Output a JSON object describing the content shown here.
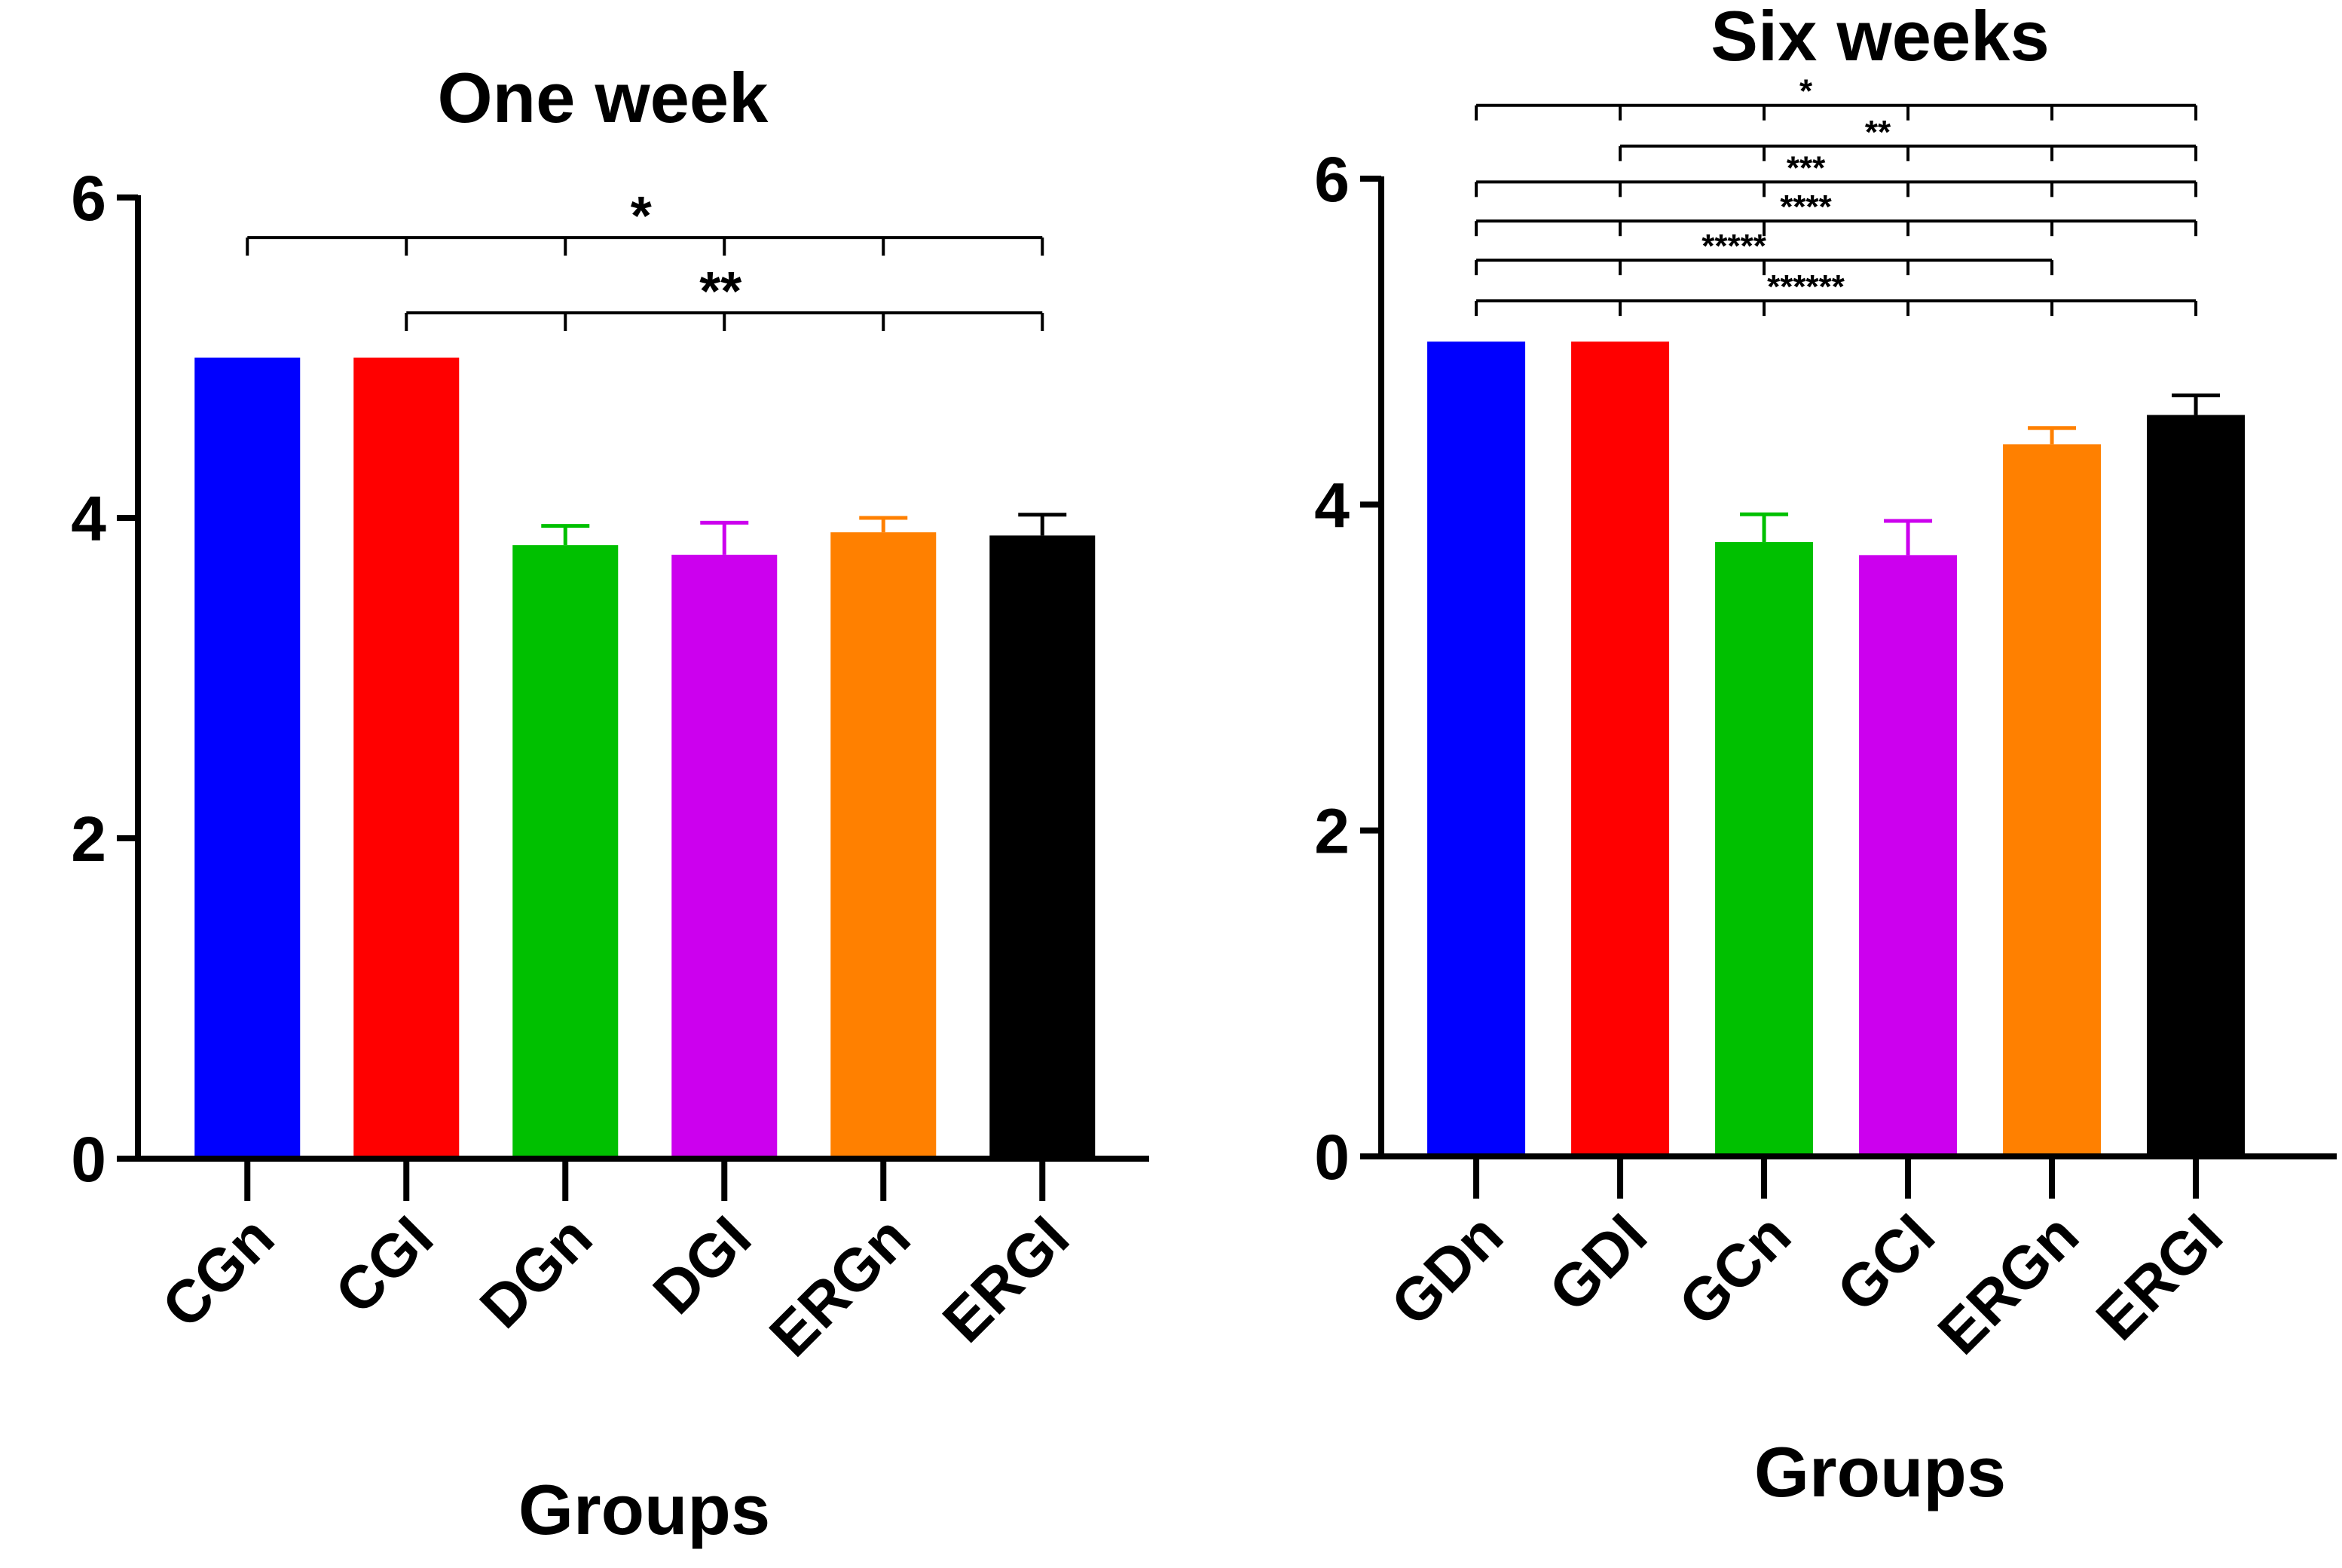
{
  "chart_data": [
    {
      "type": "bar",
      "title": "One week",
      "xlabel": "Groups",
      "ylabel": "",
      "ylim": [
        0,
        6
      ],
      "yticks": [
        0,
        2,
        4,
        6
      ],
      "categories": [
        "CGn",
        "CGI",
        "DGn",
        "DGI",
        "ERGn",
        "ERGI"
      ],
      "values": [
        5.0,
        5.0,
        3.83,
        3.77,
        3.91,
        3.89
      ],
      "errors": [
        0,
        0,
        0.12,
        0.2,
        0.09,
        0.13
      ],
      "colors": [
        "#0000ff",
        "#ff0000",
        "#00c000",
        "#cc00ee",
        "#ff8000",
        "#000000"
      ],
      "grid": false,
      "legend": "none",
      "significance": [
        {
          "label": "*",
          "from": 0,
          "to": 5,
          "y": 5.75
        },
        {
          "label": "**",
          "from": 1,
          "to": 5,
          "y": 5.28
        }
      ]
    },
    {
      "type": "bar",
      "title": "Six weeks",
      "xlabel": "Groups",
      "ylabel": "",
      "ylim": [
        0,
        6
      ],
      "yticks": [
        0,
        2,
        4,
        6
      ],
      "categories": [
        "GDn",
        "GDI",
        "GCn",
        "GCI",
        "ERGn",
        "ERGI"
      ],
      "values": [
        5.0,
        5.0,
        3.77,
        3.69,
        4.37,
        4.55
      ],
      "errors": [
        0,
        0,
        0.17,
        0.21,
        0.1,
        0.12
      ],
      "colors": [
        "#0000ff",
        "#ff0000",
        "#00c000",
        "#cc00ee",
        "#ff8000",
        "#000000"
      ],
      "grid": false,
      "legend": "none",
      "significance": [
        {
          "label": "*",
          "from": 0,
          "to": 5,
          "y": 6.45
        },
        {
          "label": "**",
          "from": 1,
          "to": 5,
          "y": 6.2
        },
        {
          "label": "***",
          "from": 0,
          "to": 5,
          "y": 5.98
        },
        {
          "label": "****",
          "from": 0,
          "to": 5,
          "y": 5.74
        },
        {
          "label": "*****",
          "from": 0,
          "to": 4,
          "y": 5.5
        },
        {
          "label": "******",
          "from": 0,
          "to": 5,
          "y": 5.25
        }
      ]
    }
  ]
}
